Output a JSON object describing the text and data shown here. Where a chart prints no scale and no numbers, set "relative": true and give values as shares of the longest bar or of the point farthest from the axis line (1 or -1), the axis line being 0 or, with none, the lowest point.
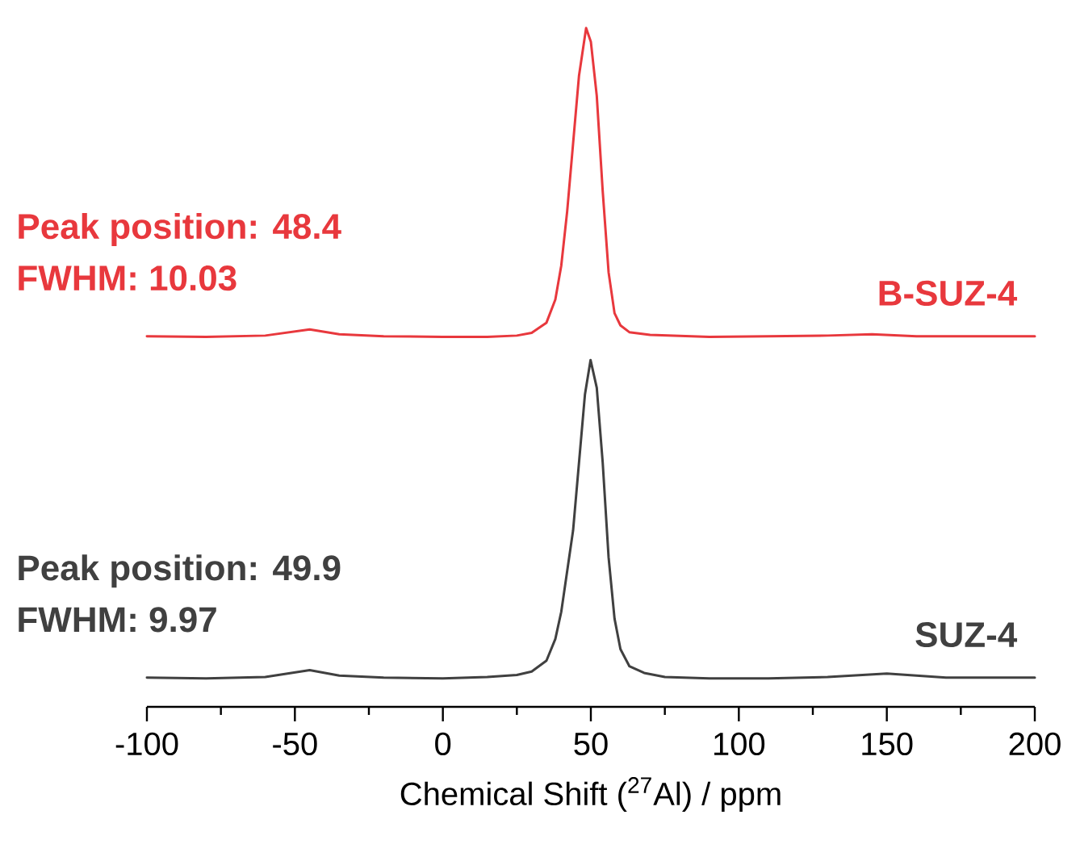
{
  "chart_data": {
    "type": "line",
    "relative": true,
    "xlabel": "Chemical Shift ($^{27}$Al) / ppm",
    "xlim": [
      -100,
      200
    ],
    "xticks": [
      -100,
      -50,
      0,
      50,
      100,
      150,
      200
    ],
    "annotations": [
      "Peak position: 48.4",
      "FWHM: 10.03",
      "Peak position: 49.9",
      "FWHM: 9.97"
    ],
    "series": [
      {
        "name": "B-SUZ-4",
        "color": "#e8383d",
        "x": [
          -100,
          -80,
          -60,
          -45,
          -35,
          -20,
          0,
          15,
          25,
          30,
          35,
          38,
          40,
          42,
          44,
          46,
          48.4,
          50,
          52,
          54,
          56,
          58,
          60,
          63,
          70,
          90,
          110,
          130,
          145,
          160,
          180,
          200
        ],
        "values": [
          0.546,
          0.545,
          0.547,
          0.556,
          0.549,
          0.546,
          0.545,
          0.545,
          0.547,
          0.551,
          0.566,
          0.6,
          0.65,
          0.73,
          0.83,
          0.93,
          1.0,
          0.98,
          0.9,
          0.76,
          0.64,
          0.58,
          0.562,
          0.552,
          0.548,
          0.545,
          0.546,
          0.547,
          0.549,
          0.546,
          0.546,
          0.546
        ]
      },
      {
        "name": "SUZ-4",
        "color": "#404040",
        "x": [
          -100,
          -80,
          -60,
          -45,
          -35,
          -20,
          0,
          15,
          25,
          30,
          35,
          38,
          40,
          42,
          44,
          46,
          48,
          49.9,
          52,
          54,
          56,
          58,
          60,
          63,
          68,
          75,
          90,
          110,
          130,
          150,
          170,
          200
        ],
        "values": [
          0.043,
          0.042,
          0.044,
          0.054,
          0.046,
          0.043,
          0.042,
          0.044,
          0.047,
          0.052,
          0.068,
          0.1,
          0.14,
          0.2,
          0.26,
          0.36,
          0.46,
          0.511,
          0.47,
          0.36,
          0.22,
          0.13,
          0.085,
          0.06,
          0.05,
          0.044,
          0.042,
          0.042,
          0.044,
          0.049,
          0.043,
          0.043
        ]
      }
    ]
  }
}
